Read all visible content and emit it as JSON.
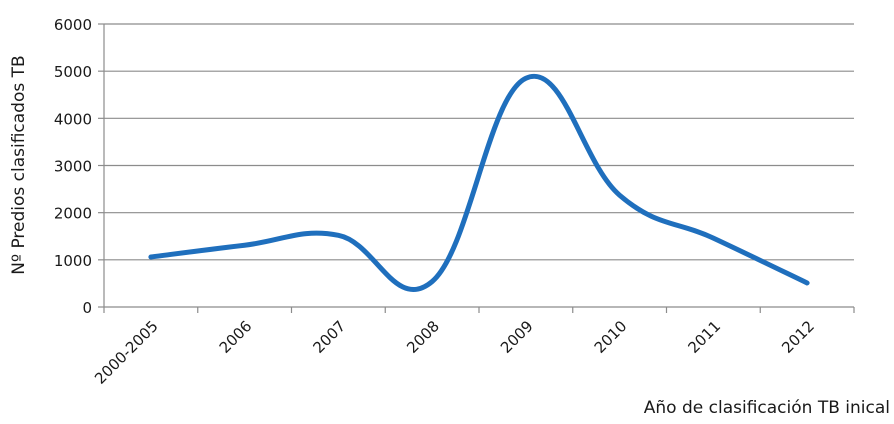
{
  "chart_data": {
    "type": "line",
    "categories": [
      "2000-2005",
      "2006",
      "2007",
      "2008",
      "2009",
      "2010",
      "2011",
      "2012"
    ],
    "series": [
      {
        "values": [
          1060,
          1310,
          1520,
          540,
          4850,
          2370,
          1460,
          510
        ],
        "color": "#1f6fbd"
      }
    ],
    "ylabel": "Nº Predios clasificados TB",
    "xlabel": "Año de clasificación TB inical",
    "ylim": [
      0,
      6000
    ],
    "yticks": [
      0,
      1000,
      2000,
      3000,
      4000,
      5000,
      6000
    ],
    "grid": true,
    "smooth": true,
    "legend": "none",
    "gridColor": "#8c8c8c",
    "axisColor": "#8c8c8c"
  }
}
